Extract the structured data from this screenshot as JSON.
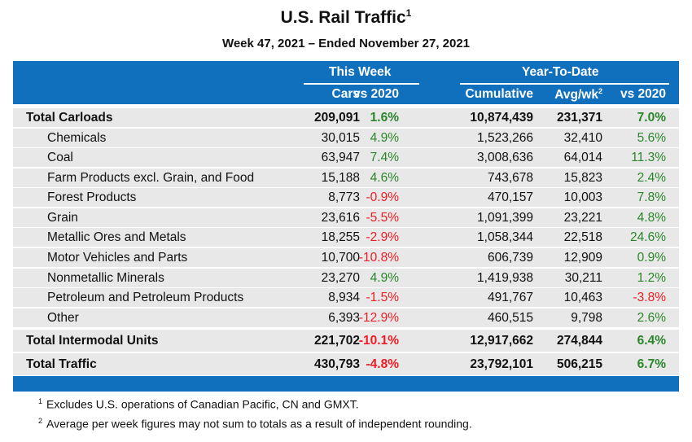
{
  "title": "U.S. Rail Traffic",
  "title_note": "1",
  "subtitle": "Week 47, 2021 – Ended November 27, 2021",
  "header": {
    "this_week": "This Week",
    "ytd": "Year-To-Date",
    "cars": "Cars",
    "vs2020": "vs 2020",
    "cumulative": "Cumulative",
    "avgwk": "Avg/wk",
    "avgwk_note": "2",
    "ytd_vs2020": "vs 2020"
  },
  "colors": {
    "header_blue": "#1170be",
    "row_gray": "#e8e8e8",
    "positive": "#2a862a",
    "negative": "#ee1c25"
  },
  "rows": [
    {
      "label": "Total Carloads",
      "cars": "209,091",
      "vs2020": "1.6%",
      "cumulative": "10,874,439",
      "avgwk": "231,371",
      "ytd_vs2020": "7.0%",
      "total": true
    },
    {
      "label": "Chemicals",
      "cars": "30,015",
      "vs2020": "4.9%",
      "cumulative": "1,523,266",
      "avgwk": "32,410",
      "ytd_vs2020": "5.6%"
    },
    {
      "label": "Coal",
      "cars": "63,947",
      "vs2020": "7.4%",
      "cumulative": "3,008,636",
      "avgwk": "64,014",
      "ytd_vs2020": "11.3%"
    },
    {
      "label": "Farm Products excl. Grain, and Food",
      "cars": "15,188",
      "vs2020": "4.6%",
      "cumulative": "743,678",
      "avgwk": "15,823",
      "ytd_vs2020": "2.4%"
    },
    {
      "label": "Forest Products",
      "cars": "8,773",
      "vs2020": "-0.9%",
      "cumulative": "470,157",
      "avgwk": "10,003",
      "ytd_vs2020": "7.8%"
    },
    {
      "label": "Grain",
      "cars": "23,616",
      "vs2020": "-5.5%",
      "cumulative": "1,091,399",
      "avgwk": "23,221",
      "ytd_vs2020": "4.8%"
    },
    {
      "label": "Metallic Ores and Metals",
      "cars": "18,255",
      "vs2020": "-2.9%",
      "cumulative": "1,058,344",
      "avgwk": "22,518",
      "ytd_vs2020": "24.6%"
    },
    {
      "label": "Motor Vehicles and Parts",
      "cars": "10,700",
      "vs2020": "-10.8%",
      "cumulative": "606,739",
      "avgwk": "12,909",
      "ytd_vs2020": "0.9%"
    },
    {
      "label": "Nonmetallic Minerals",
      "cars": "23,270",
      "vs2020": "4.9%",
      "cumulative": "1,419,938",
      "avgwk": "30,211",
      "ytd_vs2020": "1.2%"
    },
    {
      "label": "Petroleum and Petroleum Products",
      "cars": "8,934",
      "vs2020": "-1.5%",
      "cumulative": "491,767",
      "avgwk": "10,463",
      "ytd_vs2020": "-3.8%"
    },
    {
      "label": "Other",
      "cars": "6,393",
      "vs2020": "-12.9%",
      "cumulative": "460,515",
      "avgwk": "9,798",
      "ytd_vs2020": "2.6%"
    },
    {
      "label": "Total Intermodal Units",
      "cars": "221,702",
      "vs2020": "-10.1%",
      "cumulative": "12,917,662",
      "avgwk": "274,844",
      "ytd_vs2020": "6.4%",
      "total": true
    },
    {
      "label": "Total Traffic",
      "cars": "430,793",
      "vs2020": "-4.8%",
      "cumulative": "23,792,101",
      "avgwk": "506,215",
      "ytd_vs2020": "6.7%",
      "total": true
    }
  ],
  "footnotes": [
    {
      "mark": "1",
      "text": "Excludes U.S. operations of Canadian Pacific, CN and GMXT."
    },
    {
      "mark": "2",
      "text": "Average per week figures may not sum to totals as a result of independent rounding."
    }
  ]
}
